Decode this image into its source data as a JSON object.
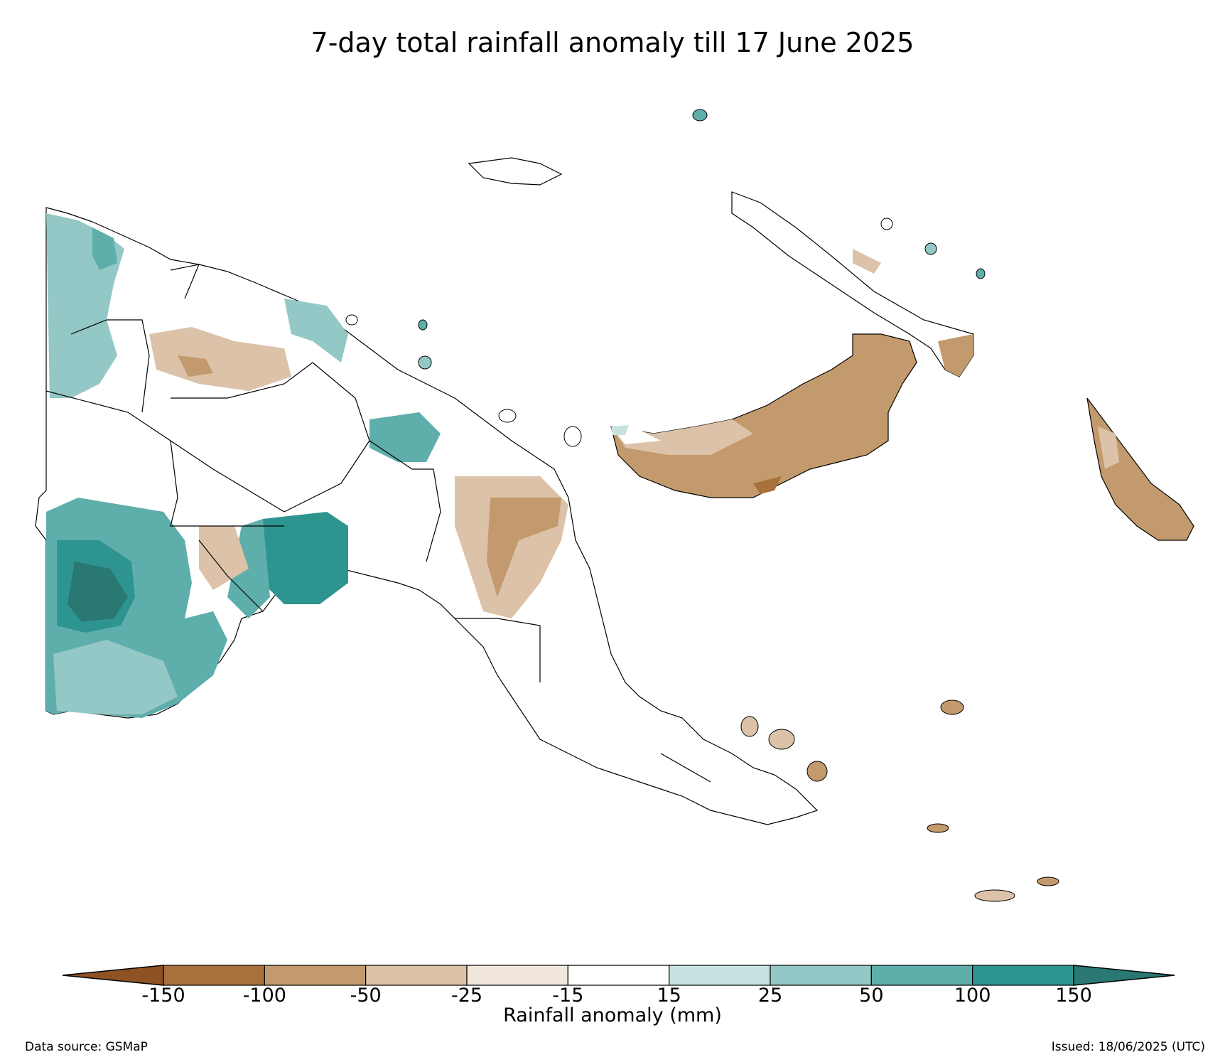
{
  "title": "7-day total rainfall anomaly till 17 June 2025",
  "colors": {
    "extreme_dry": "#8f5224",
    "dry_150": "#a8703a",
    "dry_100": "#c39a6d",
    "dry_50": "#dcc2a8",
    "dry_25": "#f0e6dc",
    "neutral": "#ffffff",
    "wet_15": "#c7e3e1",
    "wet_25": "#94c8c6",
    "wet_50": "#5eaeac",
    "wet_100": "#2e9490",
    "extreme_wet": "#297873"
  },
  "legend": {
    "title": "Rainfall anomaly (mm)",
    "ticks": [
      "-150",
      "-100",
      "-50",
      "-25",
      "-15",
      "15",
      "25",
      "50",
      "100",
      "150"
    ],
    "bins": [
      "dry_150",
      "dry_100",
      "dry_50",
      "dry_25",
      "neutral",
      "wet_15",
      "wet_25",
      "wet_50",
      "wet_100"
    ]
  },
  "footer": {
    "source": "Data source: GSMaP",
    "issued": "Issued: 18/06/2025 (UTC)"
  }
}
